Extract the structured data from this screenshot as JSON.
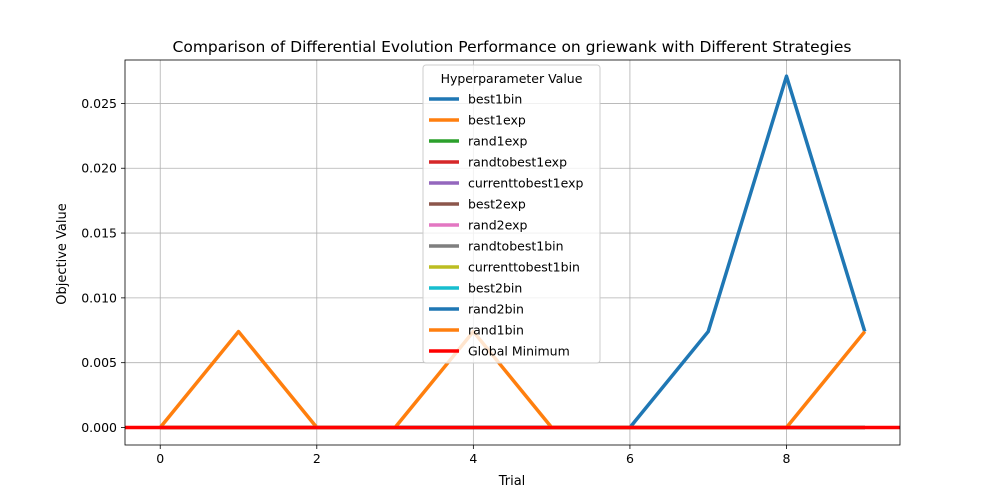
{
  "chart_data": {
    "type": "line",
    "title": "Comparison of Differential Evolution Performance on griewank with Different Strategies",
    "xlabel": "Trial",
    "ylabel": "Objective Value",
    "xlim": [
      -0.45,
      9.45
    ],
    "ylim": [
      -0.00135,
      0.02835
    ],
    "xticks": [
      0,
      2,
      4,
      6,
      8
    ],
    "xtick_labels": [
      "0",
      "2",
      "4",
      "6",
      "8"
    ],
    "yticks": [
      0.0,
      0.005,
      0.01,
      0.015,
      0.02,
      0.025
    ],
    "ytick_labels": [
      "0.000",
      "0.005",
      "0.010",
      "0.015",
      "0.020",
      "0.025"
    ],
    "grid": true,
    "legend_title": "Hyperparameter Value",
    "legend_position": "upper center",
    "x": [
      0,
      1,
      2,
      3,
      4,
      5,
      6,
      7,
      8,
      9
    ],
    "series": [
      {
        "name": "best1bin",
        "color": "#1f77b4",
        "values": [
          0,
          0,
          0,
          0,
          0,
          0,
          0,
          0,
          0,
          0
        ]
      },
      {
        "name": "best1exp",
        "color": "#ff7f0e",
        "values": [
          0,
          0.0074,
          0,
          0,
          0,
          0,
          0,
          0,
          0,
          0
        ]
      },
      {
        "name": "rand1exp",
        "color": "#2ca02c",
        "values": [
          0,
          0,
          0,
          0,
          0,
          0,
          0,
          0,
          0,
          0
        ]
      },
      {
        "name": "randtobest1exp",
        "color": "#d62728",
        "values": [
          0,
          0,
          0,
          0,
          0,
          0,
          0,
          0,
          0,
          0
        ]
      },
      {
        "name": "currenttobest1exp",
        "color": "#9467bd",
        "values": [
          0,
          0,
          0,
          0,
          0,
          0,
          0,
          0,
          0,
          0
        ]
      },
      {
        "name": "best2exp",
        "color": "#8c564b",
        "values": [
          0,
          0,
          0,
          0,
          0,
          0,
          0,
          0,
          0,
          0
        ]
      },
      {
        "name": "rand2exp",
        "color": "#e377c2",
        "values": [
          0,
          0,
          0,
          0,
          0,
          0,
          0,
          0,
          0,
          0
        ]
      },
      {
        "name": "randtobest1bin",
        "color": "#7f7f7f",
        "values": [
          0,
          0,
          0,
          0,
          0,
          0,
          0,
          0,
          0,
          0
        ]
      },
      {
        "name": "currenttobest1bin",
        "color": "#bcbd22",
        "values": [
          0,
          0,
          0,
          0,
          0,
          0,
          0,
          0,
          0,
          0
        ]
      },
      {
        "name": "best2bin",
        "color": "#17becf",
        "values": [
          0,
          0,
          0,
          0,
          0,
          0,
          0,
          0,
          0,
          0
        ]
      },
      {
        "name": "rand2bin",
        "color": "#1f77b4",
        "values": [
          0,
          0,
          0,
          0,
          0,
          0,
          0,
          0.0074,
          0.0271,
          0.0074
        ]
      },
      {
        "name": "rand1bin",
        "color": "#ff7f0e",
        "values": [
          0,
          0,
          0,
          0,
          0.0074,
          0,
          0,
          0,
          0,
          0.0074
        ]
      }
    ],
    "reference_line": {
      "name": "Global Minimum",
      "color": "#ff0000",
      "y": 0
    }
  }
}
